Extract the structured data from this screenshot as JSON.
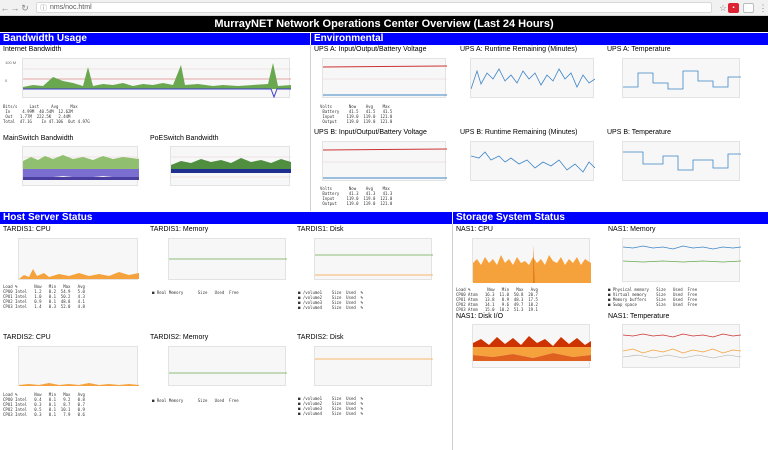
{
  "browser": {
    "url": "nms/noc.html",
    "back": "←",
    "forward": "→",
    "reload": "↻",
    "star": "☆",
    "menu": "⋮"
  },
  "title": "MurrayNET Network Operations Center Overview (Last 24 Hours)",
  "sections": {
    "bandwidth": "Bandwidth Usage",
    "environmental": "Environmental",
    "host": "Host Server Status",
    "storage": "Storage System Status"
  },
  "graphs": {
    "internet": "Internet Bandwidth",
    "mainswitch": "MainSwitch Bandwidth",
    "poeswitch": "PoESwitch Bandwidth",
    "upsa_io": "UPS A: Input/Output/Battery Voltage",
    "upsa_rt": "UPS A: Runtime Remaining (Minutes)",
    "upsa_temp": "UPS A: Temperature",
    "upsb_io": "UPS B: Input/Output/Battery Voltage",
    "upsb_rt": "UPS B: Runtime Remaining (Minutes)",
    "upsb_temp": "UPS B: Temperature",
    "t1cpu": "TARDIS1: CPU",
    "t1mem": "TARDIS1: Memory",
    "t1disk": "TARDIS1: Disk",
    "t2cpu": "TARDIS2: CPU",
    "t2mem": "TARDIS2: Memory",
    "t2disk": "TARDIS2: Disk",
    "nascpu": "NAS1: CPU",
    "nasmem": "NAS1: Memory",
    "nasdisk": "NAS1: Disk I/O",
    "nastemp": "NAS1: Temperature"
  },
  "colors": {
    "section": "#0000ff",
    "title_bar": "#000000",
    "green": "#6aa84f",
    "blue": "#3d85c6",
    "orange": "#f6a23c",
    "red": "#cc0000",
    "purple": "#7a6fd0"
  }
}
